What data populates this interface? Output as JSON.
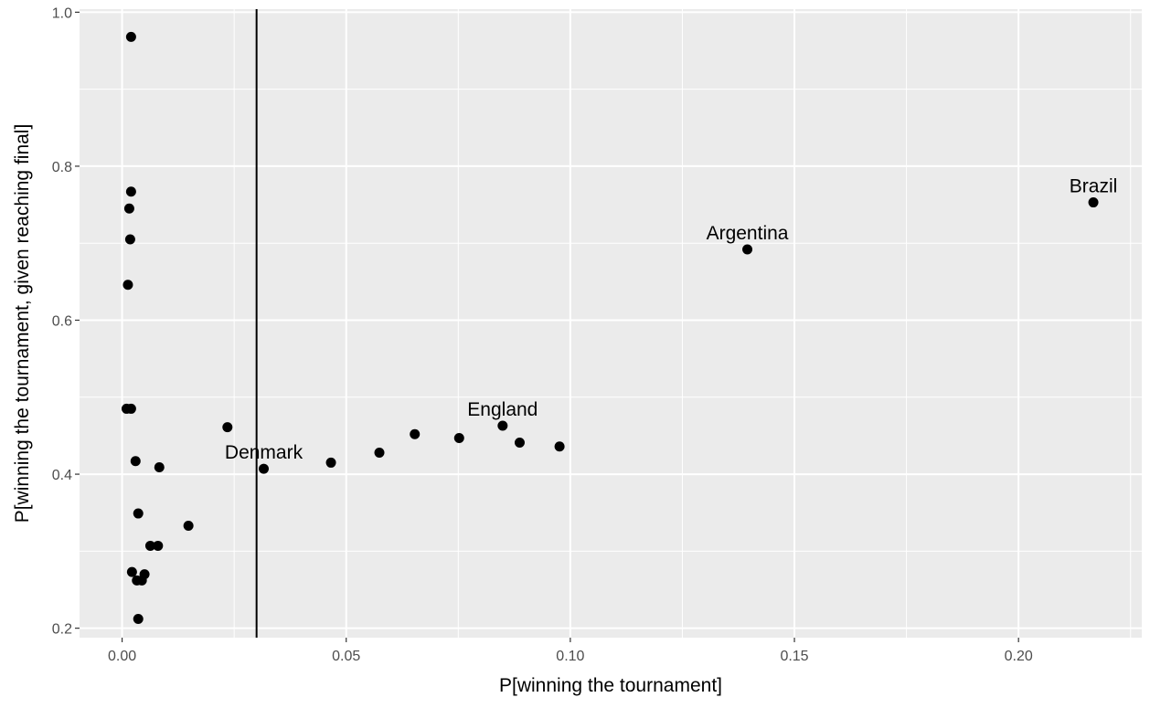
{
  "chart_data": {
    "type": "scatter",
    "title": "",
    "xlabel": "P[winning the tournament]",
    "ylabel": "P[winning the tournament, given reaching final]",
    "xlim": [
      -0.0095,
      0.2275
    ],
    "ylim": [
      0.1877,
      1.004
    ],
    "x_ticks": [
      0.0,
      0.05,
      0.1,
      0.15,
      0.2
    ],
    "x_tick_labels": [
      "0.00",
      "0.05",
      "0.10",
      "0.15",
      "0.20"
    ],
    "y_ticks": [
      0.2,
      0.4,
      0.6,
      0.8,
      1.0
    ],
    "y_tick_labels": [
      "0.2",
      "0.4",
      "0.6",
      "0.8",
      "1.0"
    ],
    "grid": true,
    "colors": {
      "panel": "#ebebeb",
      "grid": "#ffffff",
      "point": "#000000",
      "vline": "#000000"
    },
    "vline": {
      "x": 0.03
    },
    "points": [
      {
        "x": 0.002,
        "y": 0.968
      },
      {
        "x": 0.002,
        "y": 0.767
      },
      {
        "x": 0.0016,
        "y": 0.745
      },
      {
        "x": 0.0018,
        "y": 0.705
      },
      {
        "x": 0.0013,
        "y": 0.646
      },
      {
        "x": 0.001,
        "y": 0.485
      },
      {
        "x": 0.002,
        "y": 0.485
      },
      {
        "x": 0.003,
        "y": 0.417
      },
      {
        "x": 0.0083,
        "y": 0.409
      },
      {
        "x": 0.0036,
        "y": 0.349
      },
      {
        "x": 0.0148,
        "y": 0.333
      },
      {
        "x": 0.0063,
        "y": 0.307
      },
      {
        "x": 0.008,
        "y": 0.307
      },
      {
        "x": 0.0022,
        "y": 0.273
      },
      {
        "x": 0.005,
        "y": 0.27
      },
      {
        "x": 0.0033,
        "y": 0.262
      },
      {
        "x": 0.0044,
        "y": 0.262
      },
      {
        "x": 0.0036,
        "y": 0.212
      },
      {
        "x": 0.0235,
        "y": 0.461
      },
      {
        "x": 0.0316,
        "y": 0.407,
        "label": "Denmark"
      },
      {
        "x": 0.0466,
        "y": 0.415
      },
      {
        "x": 0.0574,
        "y": 0.428
      },
      {
        "x": 0.0653,
        "y": 0.452
      },
      {
        "x": 0.0752,
        "y": 0.447
      },
      {
        "x": 0.0849,
        "y": 0.463,
        "label": "England"
      },
      {
        "x": 0.0887,
        "y": 0.441
      },
      {
        "x": 0.0976,
        "y": 0.436
      },
      {
        "x": 0.1395,
        "y": 0.692,
        "label": "Argentina"
      },
      {
        "x": 0.2167,
        "y": 0.753,
        "label": "Brazil"
      }
    ]
  }
}
